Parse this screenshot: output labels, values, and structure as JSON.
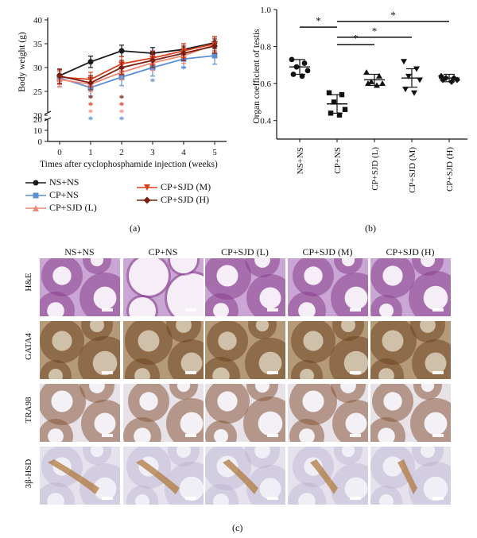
{
  "panel_a": {
    "letter": "(a)",
    "ylabel": "Body weight (g)",
    "xlabel": "Times after cyclophosphamide injection (weeks)",
    "yticks_upper": [
      "40",
      "35",
      "30",
      "25",
      "20"
    ],
    "yticks_lower": [
      "20",
      "10",
      "0"
    ],
    "xticks": [
      "0",
      "1",
      "2",
      "3",
      "4",
      "5"
    ],
    "legend": [
      {
        "label": "NS+NS",
        "color": "#1a1a1a",
        "marker": "circle"
      },
      {
        "label": "CP+NS",
        "color": "#5b8fd6",
        "marker": "square"
      },
      {
        "label": "CP+SJD (L)",
        "color": "#f08878",
        "marker": "triangle-up"
      },
      {
        "label": "CP+SJD (M)",
        "color": "#d9401e",
        "marker": "triangle-down"
      },
      {
        "label": "CP+SJD (H)",
        "color": "#7a1f12",
        "marker": "diamond"
      }
    ],
    "star": "*"
  },
  "panel_b": {
    "letter": "(b)",
    "ylabel": "Organ coefficient of testis",
    "yticks": [
      "1.0",
      "0.8",
      "0.6",
      "0.4"
    ],
    "categories": [
      "NS+NS",
      "CP+NS",
      "CP+SJD (L)",
      "CP+SJD (M)",
      "CP+SJD (H)"
    ],
    "star": "*"
  },
  "panel_c": {
    "letter": "(c)",
    "columns": [
      "NS+NS",
      "CP+NS",
      "CP+SJD (L)",
      "CP+SJD (M)",
      "CP+SJD (H)"
    ],
    "rows": [
      "H&E",
      "GATA4",
      "TRA98",
      "3β-HSD"
    ]
  },
  "colors": {
    "ns_ns": "#1a1a1a",
    "cp_ns": "#5b8fd6",
    "sjd_l": "#f08878",
    "sjd_m": "#d9401e",
    "sjd_h": "#7a1f12",
    "he": "#b65aa4",
    "dab": "#9c6a3c"
  },
  "chart_data": [
    {
      "type": "line",
      "title": "",
      "xlabel": "Times after cyclophosphamide injection (weeks)",
      "ylabel": "Body weight (g)",
      "x": [
        0,
        1,
        2,
        3,
        4,
        5
      ],
      "ylim": [
        0,
        40
      ],
      "series": [
        {
          "name": "NS+NS",
          "values": [
            28.3,
            31.2,
            33.5,
            33.0,
            33.8,
            35.2
          ]
        },
        {
          "name": "CP+NS",
          "values": [
            27.8,
            25.8,
            28.0,
            30.0,
            31.8,
            32.5
          ]
        },
        {
          "name": "CP+SJD (L)",
          "values": [
            27.5,
            26.5,
            29.0,
            31.0,
            32.5,
            34.8
          ]
        },
        {
          "name": "CP+SJD (M)",
          "values": [
            28.0,
            27.5,
            30.8,
            32.0,
            33.5,
            35.0
          ]
        },
        {
          "name": "CP+SJD (H)",
          "values": [
            28.2,
            26.8,
            30.0,
            31.5,
            33.0,
            34.5
          ]
        }
      ]
    },
    {
      "type": "scatter",
      "title": "",
      "ylabel": "Organ coefficient of testis",
      "categories": [
        "NS+NS",
        "CP+NS",
        "CP+SJD (L)",
        "CP+SJD (M)",
        "CP+SJD (H)"
      ],
      "ylim": [
        0.3,
        1.0
      ],
      "means": [
        0.69,
        0.49,
        0.62,
        0.63,
        0.63
      ],
      "points": [
        [
          0.73,
          0.71,
          0.69,
          0.67,
          0.65,
          0.64
        ],
        [
          0.55,
          0.54,
          0.5,
          0.46,
          0.44,
          0.43
        ],
        [
          0.66,
          0.64,
          0.61,
          0.6,
          0.6,
          0.59
        ],
        [
          0.72,
          0.68,
          0.64,
          0.62,
          0.57,
          0.55
        ],
        [
          0.64,
          0.63,
          0.63,
          0.62,
          0.62,
          0.61
        ]
      ]
    }
  ]
}
